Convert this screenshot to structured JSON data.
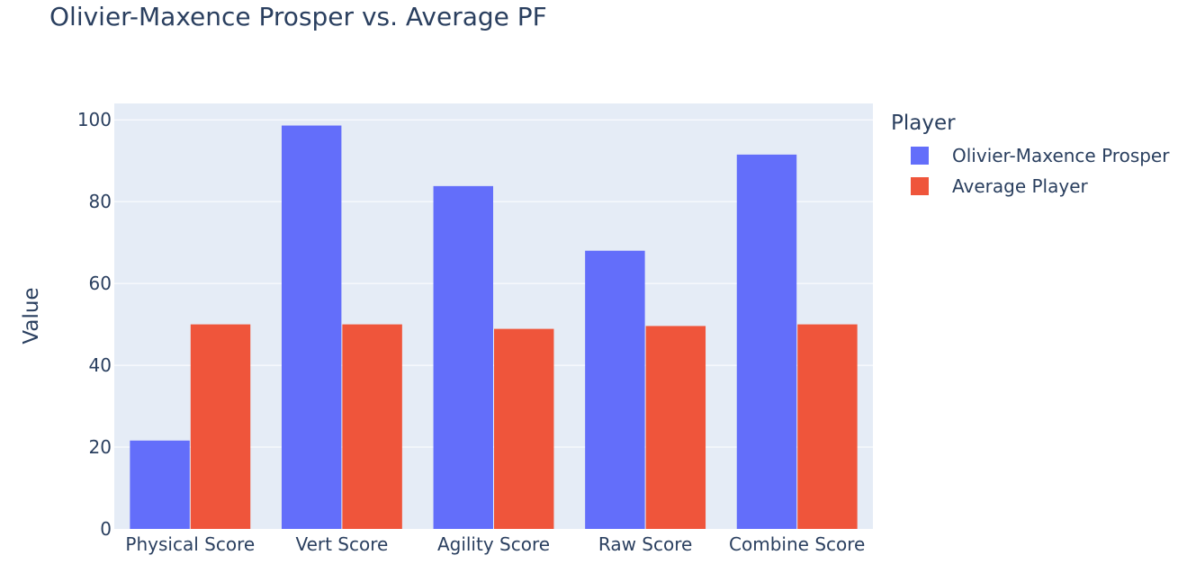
{
  "chart_data": {
    "type": "bar",
    "title": "Olivier-Maxence Prosper vs. Average PF",
    "xlabel": "",
    "ylabel": "Value",
    "ylim": [
      0,
      104
    ],
    "yticks": [
      0,
      20,
      40,
      60,
      80,
      100
    ],
    "grid": true,
    "legend_title": "Player",
    "legend_placement": "right",
    "categories": [
      "Physical Score",
      "Vert Score",
      "Agility Score",
      "Raw Score",
      "Combine Score"
    ],
    "series": [
      {
        "name": "Olivier-Maxence Prosper",
        "color": "#636efa",
        "values": [
          21.6,
          98.6,
          83.8,
          68.0,
          91.5
        ]
      },
      {
        "name": "Average Player",
        "color": "#ef553b",
        "values": [
          50.0,
          50.0,
          48.9,
          49.6,
          50.0
        ]
      }
    ]
  }
}
